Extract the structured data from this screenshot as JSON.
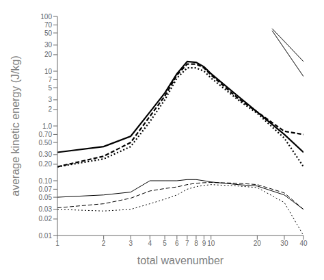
{
  "chart_data": {
    "type": "line",
    "xlabel": "total wavenumber",
    "ylabel": "average kinetic energy (J/kg)",
    "log": true,
    "grid": false,
    "color": "#000000",
    "xlim": [
      1,
      40
    ],
    "ylim": [
      0.01,
      100
    ],
    "xticks": [
      1,
      2,
      3,
      4,
      5,
      6,
      7,
      8,
      9,
      10,
      20,
      30,
      40
    ],
    "yticks": [
      0.01,
      0.02,
      0.03,
      0.05,
      0.07,
      {
        "value": 0.1,
        "label": "0.10"
      },
      {
        "value": 0.2,
        "label": "0.20"
      },
      {
        "value": 0.3,
        "label": "0.30"
      },
      {
        "value": 0.5,
        "label": "0.50"
      },
      {
        "value": 0.7,
        "label": "0.70"
      },
      {
        "value": 1.0,
        "label": "1.0"
      },
      2,
      3,
      5,
      7,
      10,
      20,
      30,
      50,
      70,
      100
    ],
    "x": [
      1,
      2,
      3,
      4,
      5,
      6,
      7,
      8,
      9,
      10,
      15,
      20,
      30,
      40
    ],
    "series": [
      {
        "values": [
          0.33,
          0.42,
          0.65,
          1.8,
          4.0,
          9.0,
          15.0,
          14.5,
          12.0,
          9.0,
          3.5,
          1.8,
          0.7,
          0.33
        ],
        "line_style": "solid"
      },
      {
        "values": [
          0.18,
          0.28,
          0.5,
          1.5,
          3.5,
          8.5,
          13.5,
          13.5,
          11.5,
          8.5,
          3.2,
          1.8,
          0.8,
          0.7
        ],
        "line_style": "dashed"
      },
      {
        "values": [
          0.18,
          0.25,
          0.42,
          1.2,
          3.0,
          7.5,
          11.5,
          11.5,
          10.0,
          7.5,
          3.0,
          1.7,
          0.6,
          0.18
        ],
        "line_style": "dotted"
      },
      {
        "values": [
          0.05,
          0.055,
          0.062,
          0.1,
          0.1,
          0.1,
          0.105,
          0.105,
          0.1,
          0.095,
          0.085,
          0.08,
          0.055,
          0.03
        ],
        "line_style": "solid"
      },
      {
        "values": [
          0.032,
          0.038,
          0.048,
          0.065,
          0.072,
          0.077,
          0.085,
          0.09,
          0.092,
          0.093,
          0.09,
          0.085,
          0.06,
          0.03
        ],
        "line_style": "dashed"
      },
      {
        "values": [
          0.03,
          0.028,
          0.03,
          0.038,
          0.046,
          0.055,
          0.07,
          0.078,
          0.082,
          0.085,
          0.08,
          0.075,
          0.04,
          0.01
        ],
        "line_style": "dotted"
      },
      {
        "x": [
          25,
          40
        ],
        "values": [
          60,
          15
        ],
        "line_style": "solid"
      },
      {
        "x": [
          25,
          40
        ],
        "values": [
          55,
          8
        ],
        "line_style": "solid"
      }
    ]
  }
}
